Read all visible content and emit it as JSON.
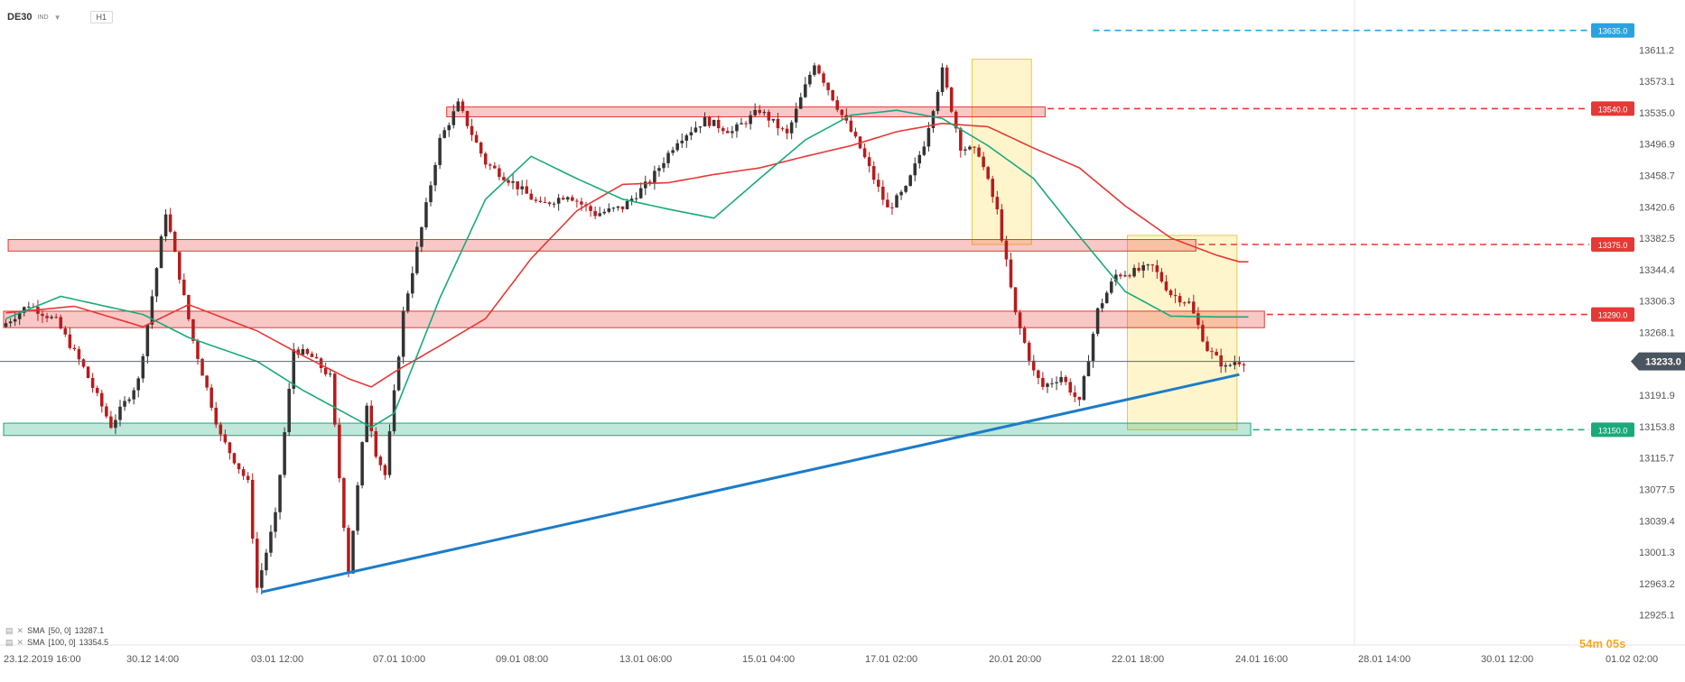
{
  "header": {
    "symbol": "DE30",
    "type": "IND",
    "timeframe": "H1"
  },
  "legend": [
    {
      "label": "SMA",
      "params": "[50, 0]",
      "value": "13287.1"
    },
    {
      "label": "SMA",
      "params": "[100, 0]",
      "value": "13354.5"
    }
  ],
  "timer": "54m 05s",
  "colors": {
    "up": "#333333",
    "down": "#b71c1c",
    "sma50": "#1aa97a",
    "sma100": "#e53935",
    "trend": "#1c7cc7",
    "resistance": "#e53935",
    "support": "#1aa97a",
    "highlight": "#fff3c4",
    "top_line": "#29a3e0"
  },
  "chart_data": {
    "type": "candlestick",
    "symbol": "DE30",
    "timeframe": "H1",
    "ylim": [
      12905,
      13650
    ],
    "y_ticks": [
      "13611.2",
      "13573.1",
      "13535.0",
      "13496.9",
      "13458.7",
      "13420.6",
      "13382.5",
      "13344.4",
      "13306.3",
      "13268.1",
      "13191.9",
      "13153.8",
      "13115.7",
      "13077.5",
      "13039.4",
      "13001.3",
      "12963.2",
      "12925.1"
    ],
    "x_ticks": [
      "23.12.2019  16:00",
      "30.12  14:00",
      "03.01  12:00",
      "07.01  10:00",
      "09.01  08:00",
      "13.01  06:00",
      "15.01  04:00",
      "17.01  02:00",
      "20.01  20:00",
      "22.01  18:00",
      "24.01  16:00",
      "28.01  14:00",
      "30.01  12:00",
      "01.02  02:00"
    ],
    "current_price": {
      "value": 13233.0,
      "label": "13233.0"
    },
    "levels": [
      {
        "value": 13635.0,
        "label": "13635.0",
        "kind": "top"
      },
      {
        "value": 13540.0,
        "label": "13540.0",
        "kind": "resistance"
      },
      {
        "value": 13375.0,
        "label": "13375.0",
        "kind": "resistance"
      },
      {
        "value": 13290.0,
        "label": "13290.0",
        "kind": "resistance"
      },
      {
        "value": 13150.0,
        "label": "13150.0",
        "kind": "support"
      }
    ],
    "zones": [
      {
        "from_bar": 97,
        "to_bar": 227,
        "low": 13530,
        "high": 13542,
        "kind": "resistance"
      },
      {
        "from_bar": 1,
        "to_bar": 260,
        "low": 13367,
        "high": 13381,
        "kind": "resistance"
      },
      {
        "from_bar": 0,
        "to_bar": 275,
        "low": 13274,
        "high": 13294,
        "kind": "resistance"
      },
      {
        "from_bar": 0,
        "to_bar": 272,
        "low": 13143,
        "high": 13158,
        "kind": "support"
      }
    ],
    "highlights": [
      {
        "from_bar": 212,
        "to_bar": 224,
        "low": 13375,
        "high": 13600
      },
      {
        "from_bar": 246,
        "to_bar": 269,
        "low": 13150,
        "high": 13386
      }
    ],
    "trendline": {
      "x": [
        56,
        270
      ],
      "y": [
        12953,
        13217
      ]
    },
    "sma50_anchors": {
      "x": [
        0,
        12,
        30,
        40,
        55,
        65,
        75,
        80,
        85,
        95,
        105,
        115,
        125,
        135,
        145,
        155,
        165,
        175,
        185,
        195,
        205,
        215,
        225,
        235,
        245,
        255,
        265,
        270
      ],
      "y": [
        13285,
        13312,
        13290,
        13262,
        13233,
        13198,
        13168,
        13153,
        13170,
        13310,
        13430,
        13482,
        13455,
        13430,
        13418,
        13407,
        13455,
        13502,
        13532,
        13538,
        13528,
        13495,
        13455,
        13385,
        13318,
        13288,
        13287,
        13287
      ]
    },
    "sma100_anchors": {
      "x": [
        0,
        15,
        30,
        40,
        55,
        65,
        75,
        80,
        85,
        95,
        105,
        115,
        125,
        135,
        145,
        155,
        165,
        175,
        185,
        195,
        205,
        215,
        225,
        235,
        245,
        255,
        265,
        270
      ],
      "y": [
        13292,
        13300,
        13275,
        13302,
        13270,
        13240,
        13212,
        13202,
        13220,
        13252,
        13285,
        13358,
        13416,
        13448,
        13450,
        13460,
        13468,
        13482,
        13495,
        13512,
        13522,
        13518,
        13492,
        13468,
        13422,
        13383,
        13362,
        13354
      ]
    },
    "price_anchors": {
      "x": [
        0,
        6,
        12,
        18,
        24,
        30,
        36,
        42,
        48,
        54,
        56,
        60,
        64,
        68,
        72,
        74,
        76,
        80,
        82,
        84,
        88,
        92,
        96,
        100,
        106,
        112,
        118,
        124,
        130,
        136,
        142,
        148,
        154,
        160,
        166,
        172,
        178,
        184,
        188,
        194,
        198,
        202,
        206,
        210,
        214,
        218,
        222,
        226,
        228,
        232,
        236,
        240,
        244,
        248,
        252,
        256,
        260,
        264,
        268,
        270
      ],
      "y": [
        13275,
        13302,
        13282,
        13225,
        13155,
        13210,
        13415,
        13258,
        13142,
        13085,
        12958,
        13045,
        13248,
        13238,
        13214,
        13092,
        12978,
        13182,
        13122,
        13095,
        13292,
        13395,
        13502,
        13545,
        13474,
        13450,
        13422,
        13436,
        13412,
        13420,
        13452,
        13502,
        13526,
        13512,
        13538,
        13508,
        13596,
        13532,
        13492,
        13418,
        13442,
        13498,
        13586,
        13494,
        13486,
        13415,
        13290,
        13220,
        13202,
        13215,
        13182,
        13295,
        13338,
        13342,
        13348,
        13315,
        13304,
        13248,
        13225,
        13233
      ]
    }
  }
}
